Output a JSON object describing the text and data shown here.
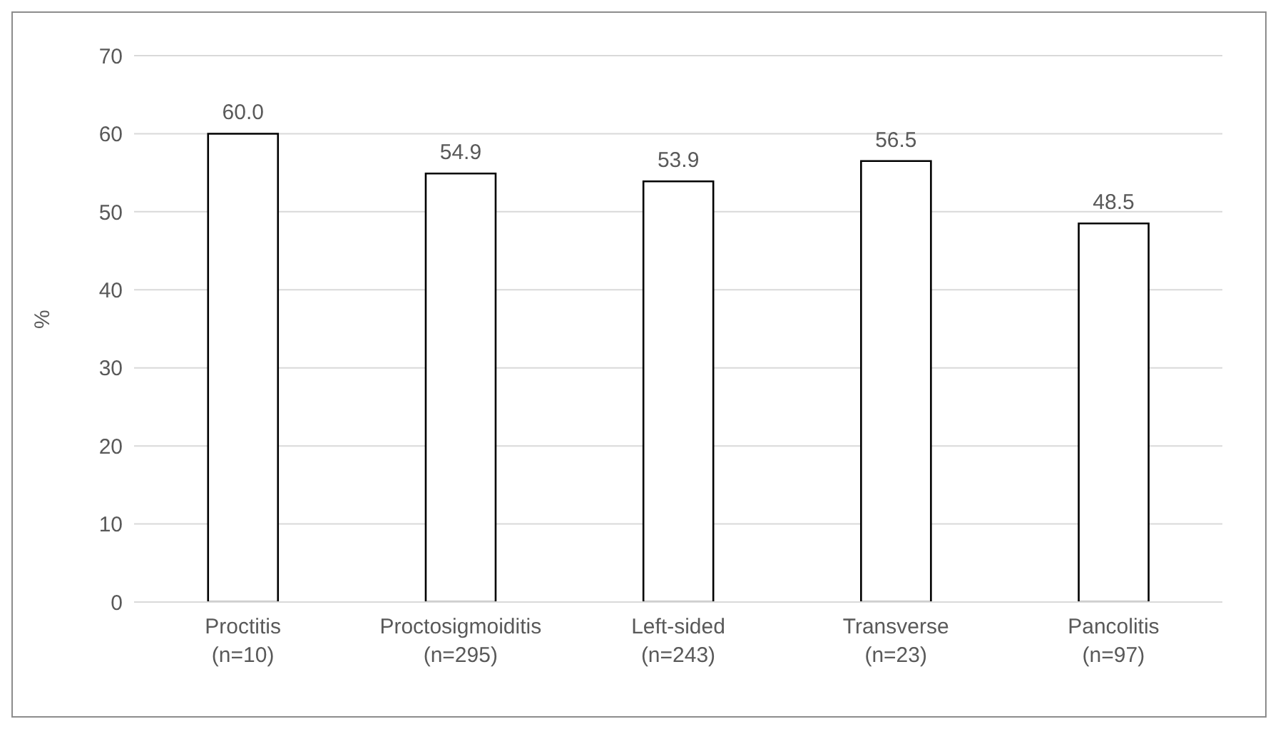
{
  "chart_data": {
    "type": "bar",
    "ylabel": "%",
    "categories": [
      "Proctitis\n(n=10)",
      "Proctosigmoiditis\n(n=295)",
      "Left-sided\n(n=243)",
      "Transverse\n(n=23)",
      "Pancolitis\n(n=97)"
    ],
    "values": [
      60.0,
      54.9,
      53.9,
      56.5,
      48.5
    ],
    "value_labels": [
      "60.0",
      "54.9",
      "53.9",
      "56.5",
      "48.5"
    ],
    "color": "#ffffff",
    "ylim": [
      0,
      70
    ],
    "yticks": [
      0,
      10,
      20,
      30,
      40,
      50,
      60,
      70
    ],
    "grid": "y"
  }
}
